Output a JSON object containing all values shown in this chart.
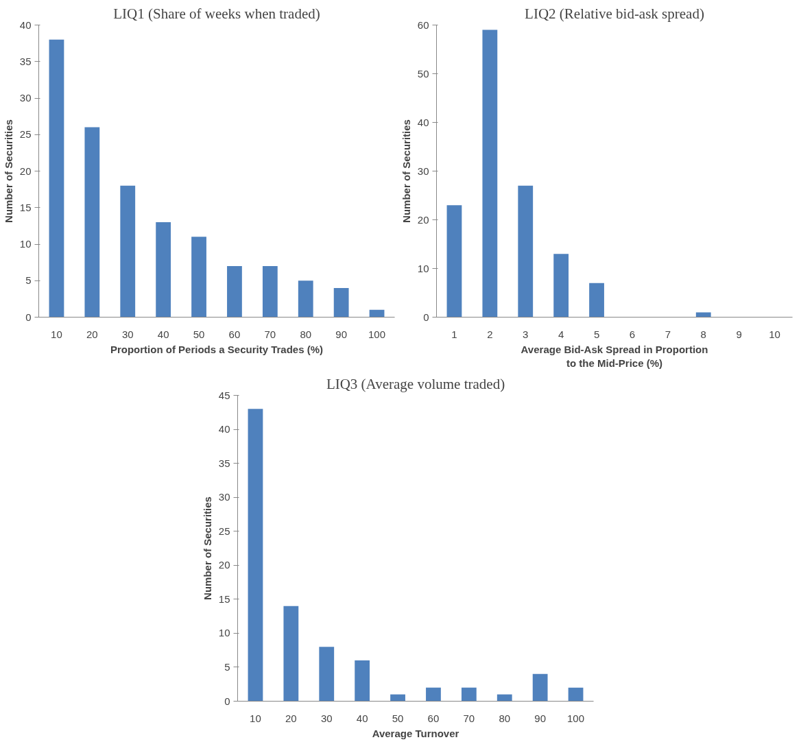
{
  "chart_data": [
    {
      "type": "bar",
      "title": "LIQ1 (Share of weeks when traded)",
      "xlabel": "Proportion of Periods a Security Trades (%)",
      "ylabel": "Number of Securities",
      "categories": [
        "10",
        "20",
        "30",
        "40",
        "50",
        "60",
        "70",
        "80",
        "90",
        "100"
      ],
      "values": [
        38,
        26,
        18,
        13,
        11,
        7,
        7,
        5,
        4,
        1
      ],
      "color": "#4f81bd",
      "ylim": [
        0,
        40
      ],
      "yticks": [
        0,
        5,
        10,
        15,
        20,
        25,
        30,
        35,
        40
      ]
    },
    {
      "type": "bar",
      "title": "LIQ2 (Relative bid-ask spread)",
      "xlabel": "Average Bid-Ask Spread in Proportion\nto the Mid-Price (%)",
      "ylabel": "Number of Securities",
      "categories": [
        "1",
        "2",
        "3",
        "4",
        "5",
        "6",
        "7",
        "8",
        "9",
        "10"
      ],
      "values": [
        23,
        59,
        27,
        13,
        7,
        0,
        0,
        1,
        0,
        0
      ],
      "color": "#4f81bd",
      "ylim": [
        0,
        60
      ],
      "yticks": [
        0,
        10,
        20,
        30,
        40,
        50,
        60
      ]
    },
    {
      "type": "bar",
      "title": "LIQ3 (Average volume traded)",
      "xlabel": "Average Turnover",
      "ylabel": "Number of Securities",
      "categories": [
        "10",
        "20",
        "30",
        "40",
        "50",
        "60",
        "70",
        "80",
        "90",
        "100"
      ],
      "values": [
        43,
        14,
        8,
        6,
        1,
        2,
        2,
        1,
        4,
        2
      ],
      "color": "#4f81bd",
      "ylim": [
        0,
        45
      ],
      "yticks": [
        0,
        5,
        10,
        15,
        20,
        25,
        30,
        35,
        40,
        45
      ]
    }
  ]
}
